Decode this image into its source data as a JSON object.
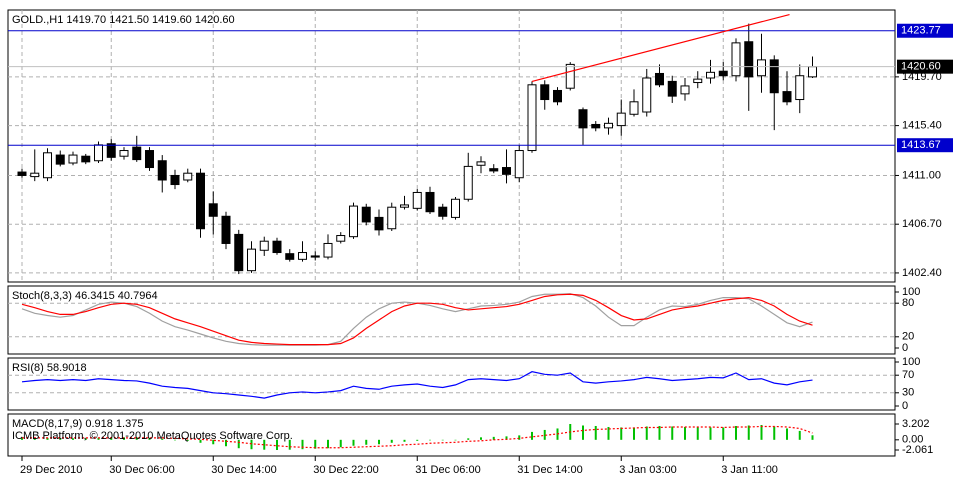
{
  "chart_data": [
    {
      "type": "candlestick",
      "title": "GOLD.,H1  1419.70 1421.50 1419.60 1420.60",
      "categories": [
        "29 Dec 2010",
        null,
        null,
        null,
        null,
        null,
        null,
        "30 Dec 06:00",
        null,
        null,
        null,
        null,
        null,
        null,
        null,
        "30 Dec 14:00",
        null,
        null,
        null,
        null,
        null,
        null,
        null,
        "30 Dec 22:00",
        null,
        null,
        null,
        null,
        null,
        null,
        null,
        "31 Dec 06:00",
        null,
        null,
        null,
        null,
        null,
        null,
        null,
        "31 Dec 14:00",
        null,
        null,
        null,
        null,
        null,
        null,
        null,
        "3 Jan 03:00",
        null,
        null,
        null,
        null,
        null,
        null,
        null,
        "3 Jan 11:00",
        null,
        null,
        null,
        null,
        null,
        null,
        null
      ],
      "open": [
        1411.3,
        1410.9,
        1410.8,
        1412.8,
        1412.1,
        1412.7,
        1412.3,
        1413.8,
        1412.7,
        1413.5,
        1413.2,
        1412.3,
        1411.0,
        1410.6,
        1411.2,
        1408.5,
        1407.4,
        1405.8,
        1402.6,
        1404.4,
        1405.2,
        1404.1,
        1403.6,
        1403.9,
        1403.8,
        1405.2,
        1405.6,
        1408.2,
        1407.3,
        1406.3,
        1408.2,
        1408.1,
        1409.5,
        1408.2,
        1407.3,
        1408.9,
        1411.9,
        1411.6,
        1411.7,
        1410.8,
        1413.2,
        1419.0,
        1418.5,
        1418.7,
        1416.8,
        1415.5,
        1415.2,
        1415.4,
        1416.4,
        1416.6,
        1420.0,
        1419.3,
        1418.2,
        1419.2,
        1419.6,
        1420.2,
        1419.8,
        1422.8,
        1419.8,
        1421.2,
        1418.4,
        1417.7,
        1419.7
      ],
      "high": [
        1411.6,
        1413.3,
        1413.4,
        1413.2,
        1413.1,
        1412.9,
        1414.0,
        1414.2,
        1413.5,
        1414.5,
        1413.5,
        1412.8,
        1411.5,
        1411.6,
        1411.6,
        1409.6,
        1407.8,
        1406.2,
        1405.2,
        1405.6,
        1405.5,
        1404.5,
        1405.2,
        1404.3,
        1405.8,
        1406.0,
        1408.6,
        1408.5,
        1408.0,
        1408.6,
        1409.2,
        1409.8,
        1410.0,
        1408.5,
        1409.1,
        1413.0,
        1412.7,
        1412.0,
        1413.3,
        1413.7,
        1419.3,
        1419.4,
        1418.8,
        1421.0,
        1417.0,
        1415.8,
        1416.1,
        1417.7,
        1418.6,
        1420.4,
        1420.8,
        1419.8,
        1419.6,
        1420.2,
        1421.2,
        1421.0,
        1423.1,
        1424.4,
        1423.5,
        1421.6,
        1420.2,
        1420.8,
        1421.5
      ],
      "low": [
        1410.8,
        1410.5,
        1410.5,
        1411.8,
        1411.9,
        1412.0,
        1412.1,
        1412.3,
        1412.4,
        1412.2,
        1411.4,
        1409.5,
        1409.8,
        1410.4,
        1405.5,
        1405.8,
        1404.5,
        1402.3,
        1402.4,
        1403.9,
        1404.0,
        1403.4,
        1403.4,
        1403.5,
        1403.6,
        1405.0,
        1405.4,
        1406.6,
        1405.7,
        1406.1,
        1408.0,
        1407.9,
        1407.6,
        1407.1,
        1407.1,
        1408.7,
        1411.2,
        1411.2,
        1410.3,
        1410.4,
        1413.0,
        1416.8,
        1417.2,
        1418.5,
        1413.7,
        1414.9,
        1414.6,
        1414.5,
        1416.2,
        1416.2,
        1418.8,
        1417.4,
        1417.6,
        1418.7,
        1419.1,
        1419.4,
        1419.3,
        1416.7,
        1418.3,
        1415.0,
        1417.2,
        1416.5,
        1419.6
      ],
      "close": [
        1411.0,
        1411.2,
        1413.0,
        1412.0,
        1412.8,
        1412.2,
        1413.7,
        1412.6,
        1413.2,
        1412.4,
        1411.7,
        1410.6,
        1410.2,
        1411.2,
        1406.3,
        1407.4,
        1405.0,
        1402.6,
        1404.5,
        1405.2,
        1404.2,
        1403.6,
        1404.2,
        1403.8,
        1405.0,
        1405.7,
        1408.3,
        1406.9,
        1406.2,
        1408.2,
        1408.4,
        1409.5,
        1407.8,
        1407.4,
        1408.9,
        1411.8,
        1412.2,
        1411.4,
        1411.1,
        1413.2,
        1419.0,
        1417.7,
        1417.5,
        1420.8,
        1415.2,
        1415.2,
        1415.6,
        1416.5,
        1417.5,
        1419.6,
        1419.0,
        1418.0,
        1418.9,
        1419.5,
        1420.1,
        1419.8,
        1422.7,
        1419.7,
        1421.2,
        1418.3,
        1417.5,
        1419.8,
        1420.6
      ],
      "up_color": "#ffffff",
      "down_color": "#000000",
      "ylim": [
        1401.6,
        1425.6
      ],
      "yticks": [
        {
          "value": 1419.7,
          "label": "1419.70"
        },
        {
          "value": 1415.4,
          "label": "1415.40"
        },
        {
          "value": 1411,
          "label": "1411.00"
        },
        {
          "value": 1406.7,
          "label": "1406.70"
        },
        {
          "value": 1402.4,
          "label": "1402.40"
        }
      ],
      "grid": true,
      "hlines": [
        {
          "value": 1423.77,
          "label": "1423.77",
          "color": "#0000cc",
          "line_color": "#0000cc"
        },
        {
          "value": 1420.6,
          "label": "1420.60",
          "color": "#000000",
          "line_color": "#c0c0c0"
        },
        {
          "value": 1413.67,
          "label": "1413.67",
          "color": "#0000cc",
          "line_color": "#0000cc"
        }
      ],
      "trendlines": [
        {
          "color": "#ff0000",
          "x": [
            40,
            60.2
          ],
          "y": [
            1419.3,
            1425.2
          ]
        }
      ]
    },
    {
      "type": "line",
      "title": "Stoch(8,3,3) 46.3415 40.7964",
      "series": [
        {
          "color": "#a0a0a0",
          "values": [
            70,
            62,
            58,
            55,
            58,
            68,
            78,
            82,
            80,
            74,
            62,
            48,
            38,
            32,
            25,
            18,
            12,
            8,
            6,
            5,
            5,
            5,
            5,
            5,
            6,
            12,
            35,
            55,
            70,
            80,
            82,
            80,
            76,
            70,
            65,
            70,
            75,
            76,
            78,
            82,
            92,
            96,
            96,
            97,
            90,
            75,
            55,
            40,
            40,
            55,
            68,
            75,
            74,
            78,
            85,
            90,
            90,
            88,
            75,
            60,
            45,
            38,
            46.3415
          ]
        },
        {
          "color": "#ff0000",
          "values": [
            78,
            72,
            65,
            60,
            60,
            65,
            72,
            78,
            80,
            78,
            72,
            62,
            52,
            45,
            38,
            30,
            22,
            14,
            10,
            8,
            7,
            6,
            6,
            6,
            6,
            8,
            18,
            35,
            50,
            65,
            75,
            80,
            80,
            78,
            72,
            68,
            70,
            72,
            74,
            78,
            85,
            92,
            95,
            96,
            94,
            85,
            72,
            58,
            50,
            52,
            60,
            68,
            72,
            75,
            80,
            85,
            88,
            90,
            85,
            75,
            60,
            48,
            40.7964
          ]
        }
      ],
      "ylim": [
        0,
        100
      ],
      "yticks": [
        100,
        80,
        20,
        0
      ],
      "grid": true
    },
    {
      "type": "line",
      "title": "RSI(8) 58.9018",
      "series": [
        {
          "color": "#0000ff",
          "values": [
            55,
            58,
            60,
            58,
            60,
            58,
            62,
            60,
            58,
            57,
            52,
            45,
            42,
            40,
            35,
            30,
            28,
            25,
            22,
            18,
            25,
            30,
            32,
            30,
            32,
            35,
            45,
            40,
            38,
            45,
            48,
            50,
            45,
            42,
            48,
            60,
            62,
            60,
            58,
            62,
            78,
            72,
            70,
            75,
            55,
            52,
            55,
            57,
            60,
            65,
            62,
            58,
            60,
            62,
            65,
            64,
            75,
            60,
            62,
            52,
            48,
            55,
            58.9018
          ]
        }
      ],
      "ylim": [
        0,
        100
      ],
      "yticks": [
        100,
        70,
        30,
        0
      ],
      "grid": true
    },
    {
      "type": "bar",
      "title": "MACD(8,17,9) 0.918 1.375",
      "annotation": "ICMB Platform, © 2001-2010 MetaQuotes Software Corp.",
      "series": [
        {
          "mark": "bar",
          "color": "#00c000",
          "values": [
            0.5,
            0.4,
            0.4,
            0.3,
            0.3,
            0.3,
            0.4,
            0.5,
            0.5,
            0.5,
            0.4,
            0.2,
            0.0,
            -0.2,
            -0.6,
            -0.9,
            -1.3,
            -1.7,
            -1.9,
            -2.0,
            -2.061,
            -2.0,
            -1.9,
            -1.8,
            -1.7,
            -1.5,
            -1.2,
            -1.0,
            -0.9,
            -0.6,
            -0.4,
            -0.2,
            -0.1,
            -0.1,
            0.0,
            0.3,
            0.5,
            0.6,
            0.7,
            0.9,
            1.6,
            2.0,
            2.3,
            3.202,
            2.9,
            2.8,
            2.6,
            2.5,
            2.5,
            2.7,
            2.8,
            2.7,
            2.6,
            2.5,
            2.5,
            2.5,
            2.8,
            2.9,
            3.0,
            2.7,
            2.3,
            1.8,
            0.918
          ]
        },
        {
          "mark": "line",
          "dash": true,
          "color": "#ff0000",
          "values": [
            0.4,
            0.4,
            0.4,
            0.4,
            0.4,
            0.4,
            0.4,
            0.4,
            0.4,
            0.4,
            0.4,
            0.4,
            0.3,
            0.2,
            0.1,
            -0.1,
            -0.3,
            -0.5,
            -0.8,
            -1.0,
            -1.2,
            -1.4,
            -1.5,
            -1.6,
            -1.6,
            -1.6,
            -1.5,
            -1.4,
            -1.3,
            -1.2,
            -1.0,
            -0.9,
            -0.7,
            -0.6,
            -0.5,
            -0.3,
            -0.2,
            0.0,
            0.1,
            0.3,
            0.6,
            0.9,
            1.2,
            1.6,
            1.9,
            2.1,
            2.2,
            2.3,
            2.4,
            2.5,
            2.5,
            2.6,
            2.6,
            2.6,
            2.6,
            2.5,
            2.6,
            2.6,
            2.7,
            2.7,
            2.6,
            2.3,
            1.375
          ]
        }
      ],
      "ylim": [
        -2.061,
        3.202
      ],
      "yticks": [
        3.202,
        {
          "value": 0,
          "label": "0.00"
        },
        -2.061
      ],
      "grid": false
    }
  ]
}
